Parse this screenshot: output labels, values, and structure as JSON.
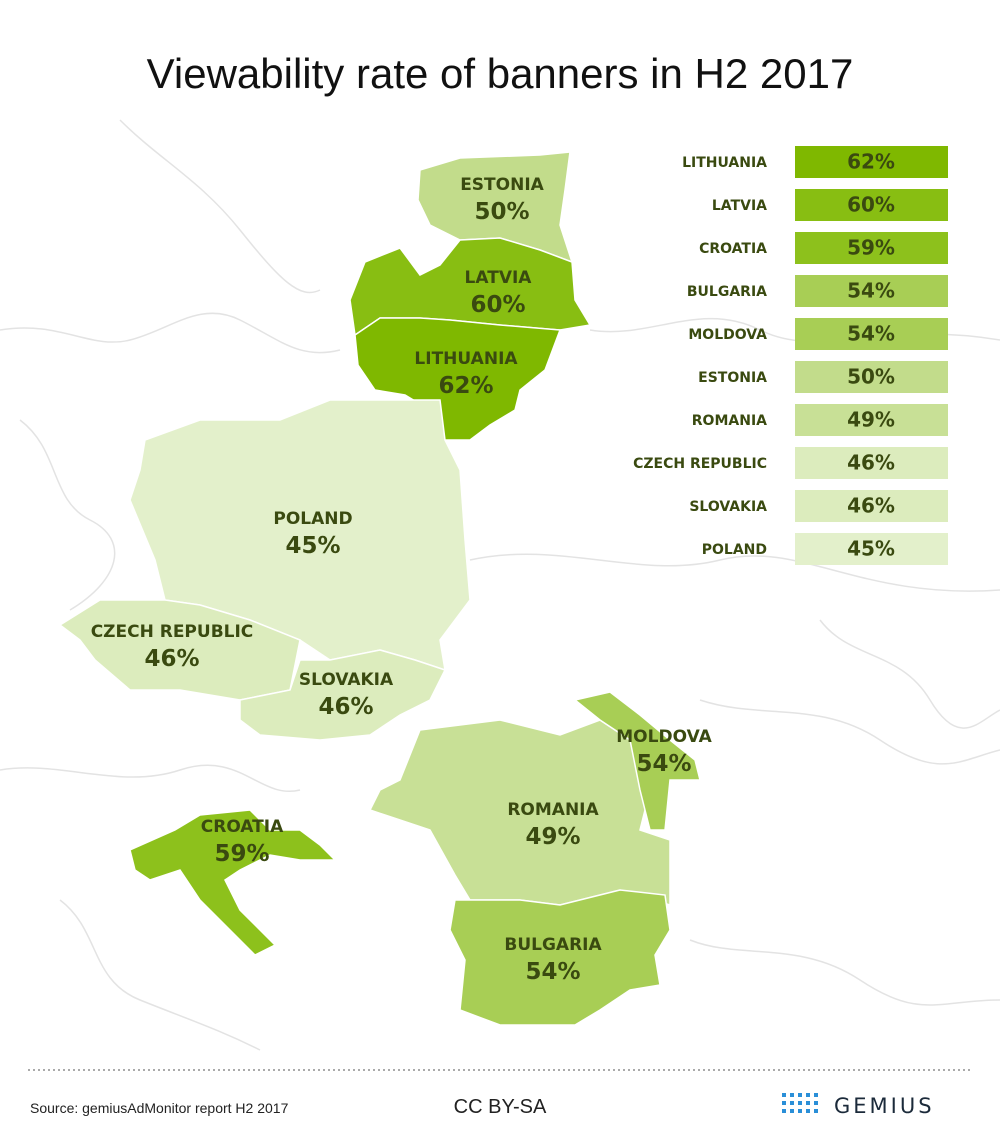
{
  "header": {
    "title": "Viewability rate of banners in H2 2017"
  },
  "legend": [
    {
      "country": "LITHUANIA",
      "value": "62%",
      "color": "#7fb800"
    },
    {
      "country": "LATVIA",
      "value": "60%",
      "color": "#88be12"
    },
    {
      "country": "CROATIA",
      "value": "59%",
      "color": "#8dc11c"
    },
    {
      "country": "BULGARIA",
      "value": "54%",
      "color": "#a8ce55"
    },
    {
      "country": "MOLDOVA",
      "value": "54%",
      "color": "#a8ce55"
    },
    {
      "country": "ESTONIA",
      "value": "50%",
      "color": "#c2dc8b"
    },
    {
      "country": "ROMANIA",
      "value": "49%",
      "color": "#c8e096"
    },
    {
      "country": "CZECH REPUBLIC",
      "value": "46%",
      "color": "#dcecbd"
    },
    {
      "country": "SLOVAKIA",
      "value": "46%",
      "color": "#dcecbd"
    },
    {
      "country": "POLAND",
      "value": "45%",
      "color": "#e3f0cb"
    }
  ],
  "map": [
    {
      "name": "ESTONIA",
      "value": "50%",
      "color": "#c2dc8b"
    },
    {
      "name": "LATVIA",
      "value": "60%",
      "color": "#88be12"
    },
    {
      "name": "LITHUANIA",
      "value": "62%",
      "color": "#7fb800"
    },
    {
      "name": "POLAND",
      "value": "45%",
      "color": "#e3f0cb"
    },
    {
      "name": "CZECH REPUBLIC",
      "value": "46%",
      "color": "#dcecbd"
    },
    {
      "name": "SLOVAKIA",
      "value": "46%",
      "color": "#dcecbd"
    },
    {
      "name": "ROMANIA",
      "value": "49%",
      "color": "#c8e096"
    },
    {
      "name": "MOLDOVA",
      "value": "54%",
      "color": "#a8ce55"
    },
    {
      "name": "BULGARIA",
      "value": "54%",
      "color": "#a8ce55"
    },
    {
      "name": "CROATIA",
      "value": "59%",
      "color": "#8dc11c"
    }
  ],
  "footer": {
    "source": "Source: gemiusAdMonitor report H2 2017",
    "license": "CC BY-SA",
    "brand": "GEMIUS"
  }
}
